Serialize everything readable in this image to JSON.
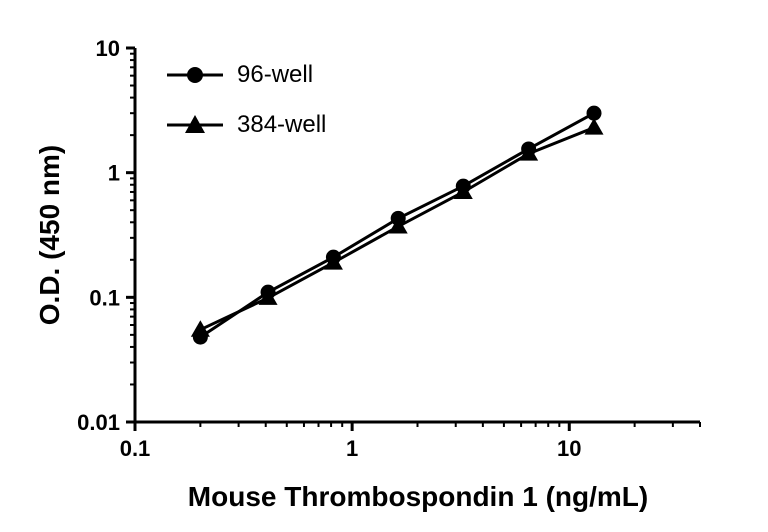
{
  "figure": {
    "background": "#ffffff",
    "axis_color": "#000000"
  },
  "chart_data": {
    "type": "line",
    "title": "",
    "xlabel": "Mouse Thrombospondin 1 (ng/mL)",
    "ylabel": "O.D. (450 nm)",
    "x_scale": "log",
    "y_scale": "log",
    "xlim": [
      0.1,
      40
    ],
    "ylim": [
      0.01,
      10
    ],
    "grid": false,
    "legend_position": "top-left-inside",
    "x_ticks": [
      {
        "value": 0.1,
        "label": "0.1"
      },
      {
        "value": 1,
        "label": "1"
      },
      {
        "value": 10,
        "label": "10"
      }
    ],
    "y_ticks": [
      {
        "value": 0.01,
        "label": "0.01"
      },
      {
        "value": 0.1,
        "label": "0.1"
      },
      {
        "value": 1,
        "label": "1"
      },
      {
        "value": 10,
        "label": "10"
      }
    ],
    "x": [
      0.2,
      0.41,
      0.82,
      1.63,
      3.25,
      6.5,
      13
    ],
    "series": [
      {
        "name": "96-well",
        "marker": "circle",
        "color": "#000000",
        "values": [
          0.048,
          0.11,
          0.21,
          0.43,
          0.78,
          1.55,
          3.0
        ]
      },
      {
        "name": "384-well",
        "marker": "triangle",
        "color": "#000000",
        "values": [
          0.055,
          0.099,
          0.19,
          0.37,
          0.7,
          1.42,
          2.3
        ]
      }
    ]
  }
}
